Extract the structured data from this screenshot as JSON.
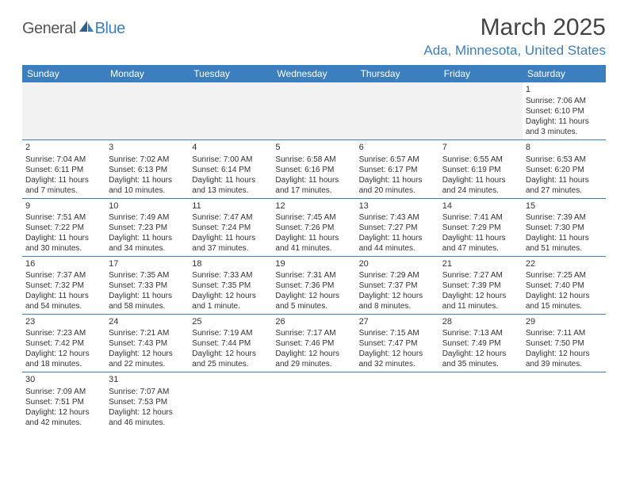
{
  "logo": {
    "text1": "General",
    "text2": "Blue"
  },
  "title": "March 2025",
  "location": "Ada, Minnesota, United States",
  "colors": {
    "header_bg": "#3b7fbf",
    "header_text": "#ffffff",
    "row_border": "#3b7fbf",
    "blank_bg": "#f2f2f2",
    "text": "#333333",
    "brand_blue": "#3b7fbf",
    "logo_gray": "#555555"
  },
  "weekdays": [
    "Sunday",
    "Monday",
    "Tuesday",
    "Wednesday",
    "Thursday",
    "Friday",
    "Saturday"
  ],
  "days": {
    "1": {
      "sunrise": "7:06 AM",
      "sunset": "6:10 PM",
      "daylight_h": 11,
      "daylight_m": 3
    },
    "2": {
      "sunrise": "7:04 AM",
      "sunset": "6:11 PM",
      "daylight_h": 11,
      "daylight_m": 7
    },
    "3": {
      "sunrise": "7:02 AM",
      "sunset": "6:13 PM",
      "daylight_h": 11,
      "daylight_m": 10
    },
    "4": {
      "sunrise": "7:00 AM",
      "sunset": "6:14 PM",
      "daylight_h": 11,
      "daylight_m": 13
    },
    "5": {
      "sunrise": "6:58 AM",
      "sunset": "6:16 PM",
      "daylight_h": 11,
      "daylight_m": 17
    },
    "6": {
      "sunrise": "6:57 AM",
      "sunset": "6:17 PM",
      "daylight_h": 11,
      "daylight_m": 20
    },
    "7": {
      "sunrise": "6:55 AM",
      "sunset": "6:19 PM",
      "daylight_h": 11,
      "daylight_m": 24
    },
    "8": {
      "sunrise": "6:53 AM",
      "sunset": "6:20 PM",
      "daylight_h": 11,
      "daylight_m": 27
    },
    "9": {
      "sunrise": "7:51 AM",
      "sunset": "7:22 PM",
      "daylight_h": 11,
      "daylight_m": 30
    },
    "10": {
      "sunrise": "7:49 AM",
      "sunset": "7:23 PM",
      "daylight_h": 11,
      "daylight_m": 34
    },
    "11": {
      "sunrise": "7:47 AM",
      "sunset": "7:24 PM",
      "daylight_h": 11,
      "daylight_m": 37
    },
    "12": {
      "sunrise": "7:45 AM",
      "sunset": "7:26 PM",
      "daylight_h": 11,
      "daylight_m": 41
    },
    "13": {
      "sunrise": "7:43 AM",
      "sunset": "7:27 PM",
      "daylight_h": 11,
      "daylight_m": 44
    },
    "14": {
      "sunrise": "7:41 AM",
      "sunset": "7:29 PM",
      "daylight_h": 11,
      "daylight_m": 47
    },
    "15": {
      "sunrise": "7:39 AM",
      "sunset": "7:30 PM",
      "daylight_h": 11,
      "daylight_m": 51
    },
    "16": {
      "sunrise": "7:37 AM",
      "sunset": "7:32 PM",
      "daylight_h": 11,
      "daylight_m": 54
    },
    "17": {
      "sunrise": "7:35 AM",
      "sunset": "7:33 PM",
      "daylight_h": 11,
      "daylight_m": 58
    },
    "18": {
      "sunrise": "7:33 AM",
      "sunset": "7:35 PM",
      "daylight_h": 12,
      "daylight_m": 1
    },
    "19": {
      "sunrise": "7:31 AM",
      "sunset": "7:36 PM",
      "daylight_h": 12,
      "daylight_m": 5
    },
    "20": {
      "sunrise": "7:29 AM",
      "sunset": "7:37 PM",
      "daylight_h": 12,
      "daylight_m": 8
    },
    "21": {
      "sunrise": "7:27 AM",
      "sunset": "7:39 PM",
      "daylight_h": 12,
      "daylight_m": 11
    },
    "22": {
      "sunrise": "7:25 AM",
      "sunset": "7:40 PM",
      "daylight_h": 12,
      "daylight_m": 15
    },
    "23": {
      "sunrise": "7:23 AM",
      "sunset": "7:42 PM",
      "daylight_h": 12,
      "daylight_m": 18
    },
    "24": {
      "sunrise": "7:21 AM",
      "sunset": "7:43 PM",
      "daylight_h": 12,
      "daylight_m": 22
    },
    "25": {
      "sunrise": "7:19 AM",
      "sunset": "7:44 PM",
      "daylight_h": 12,
      "daylight_m": 25
    },
    "26": {
      "sunrise": "7:17 AM",
      "sunset": "7:46 PM",
      "daylight_h": 12,
      "daylight_m": 29
    },
    "27": {
      "sunrise": "7:15 AM",
      "sunset": "7:47 PM",
      "daylight_h": 12,
      "daylight_m": 32
    },
    "28": {
      "sunrise": "7:13 AM",
      "sunset": "7:49 PM",
      "daylight_h": 12,
      "daylight_m": 35
    },
    "29": {
      "sunrise": "7:11 AM",
      "sunset": "7:50 PM",
      "daylight_h": 12,
      "daylight_m": 39
    },
    "30": {
      "sunrise": "7:09 AM",
      "sunset": "7:51 PM",
      "daylight_h": 12,
      "daylight_m": 42
    },
    "31": {
      "sunrise": "7:07 AM",
      "sunset": "7:53 PM",
      "daylight_h": 12,
      "daylight_m": 46
    }
  },
  "grid": [
    [
      null,
      null,
      null,
      null,
      null,
      null,
      "1"
    ],
    [
      "2",
      "3",
      "4",
      "5",
      "6",
      "7",
      "8"
    ],
    [
      "9",
      "10",
      "11",
      "12",
      "13",
      "14",
      "15"
    ],
    [
      "16",
      "17",
      "18",
      "19",
      "20",
      "21",
      "22"
    ],
    [
      "23",
      "24",
      "25",
      "26",
      "27",
      "28",
      "29"
    ],
    [
      "30",
      "31",
      null,
      null,
      null,
      null,
      null
    ]
  ],
  "labels": {
    "sunrise_prefix": "Sunrise: ",
    "sunset_prefix": "Sunset: ",
    "daylight_prefix": "Daylight: ",
    "hours_word": " hours",
    "and_word": "and ",
    "minute_word": " minute.",
    "minutes_word": " minutes."
  }
}
